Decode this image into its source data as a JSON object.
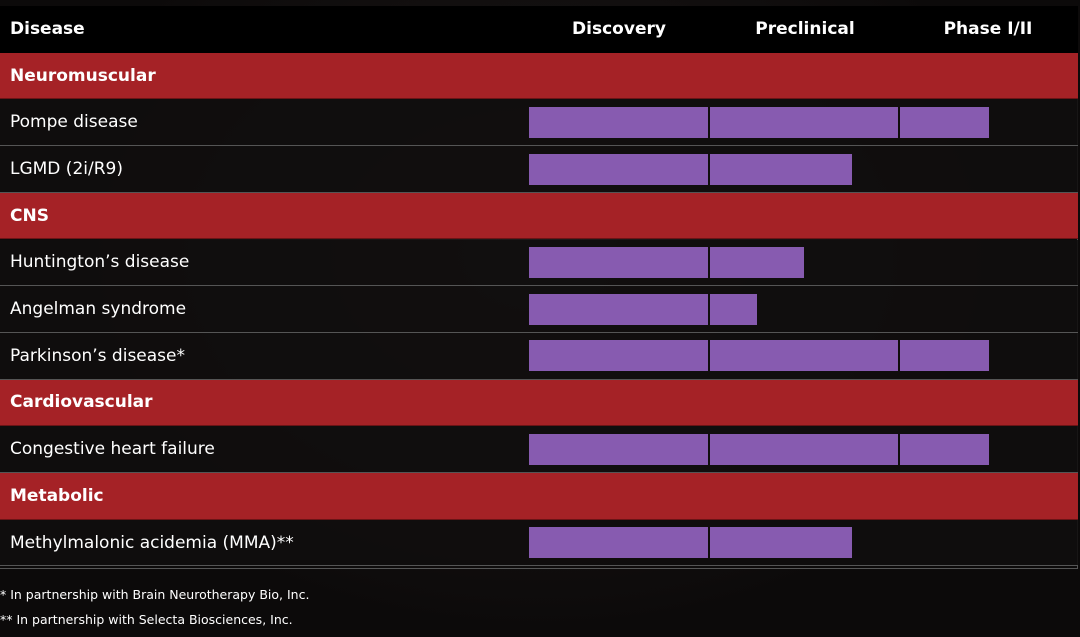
{
  "header": {
    "columns": [
      "Disease",
      "Discovery",
      "Preclinical",
      "Phase I/II"
    ]
  },
  "groups": [
    {
      "name": "Neuromuscular",
      "rows": [
        {
          "name": "Pompe disease",
          "progress": 2.5
        },
        {
          "name": "LGMD (2i/R9)",
          "progress": 1.75
        }
      ]
    },
    {
      "name": "CNS",
      "rows": [
        {
          "name": "Huntington’s disease",
          "progress": 1.5
        },
        {
          "name": "Angelman syndrome",
          "progress": 1.25
        },
        {
          "name": "Parkinson’s disease*",
          "progress": 2.5
        }
      ]
    },
    {
      "name": "Cardiovascular",
      "rows": [
        {
          "name": "Congestive heart failure",
          "progress": 2.5
        }
      ]
    },
    {
      "name": "Metabolic",
      "rows": [
        {
          "name": "Methylmalonic acidemia (MMA)**",
          "progress": 1.75
        }
      ]
    }
  ],
  "footnotes": [
    "* In partnership with Brain Neurotherapy Bio, Inc.",
    "** In partnership with Selecta Biosciences, Inc."
  ]
}
